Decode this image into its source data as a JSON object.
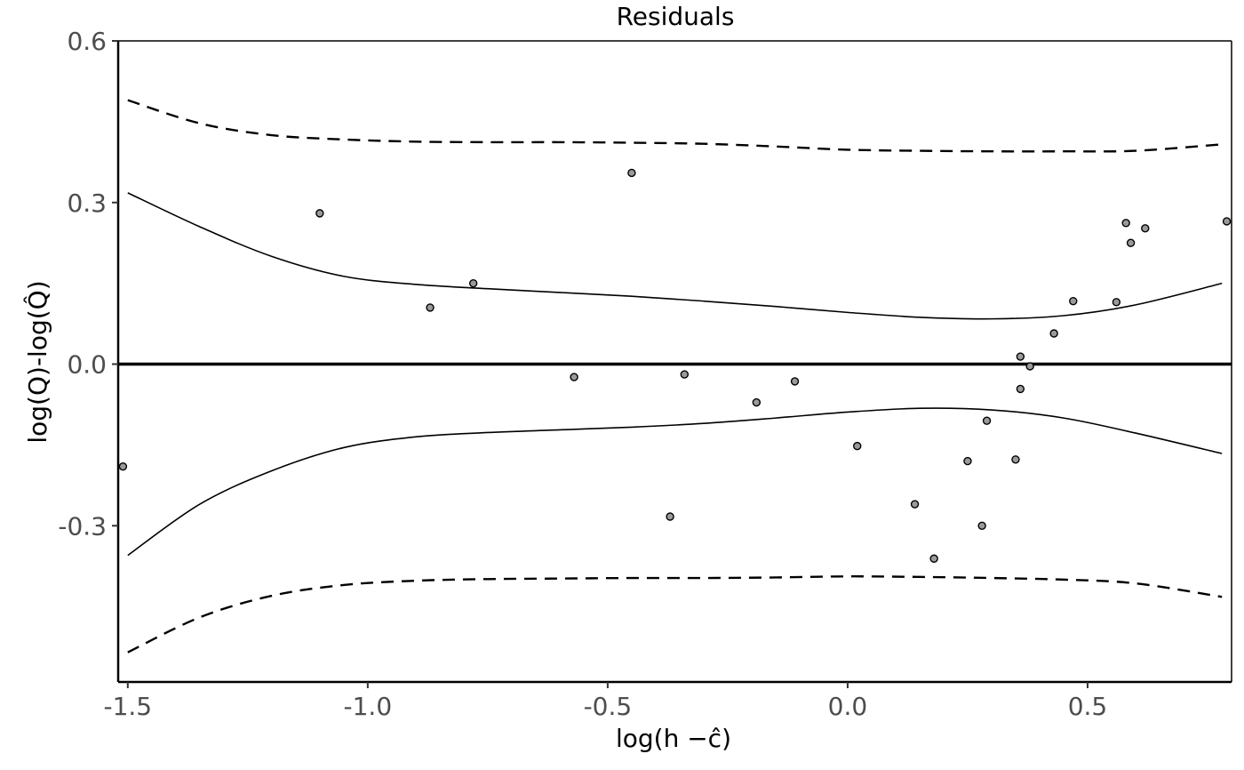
{
  "chart_data": {
    "type": "scatter",
    "title": "Residuals",
    "xlabel": "log(h −ĉ)",
    "ylabel": "log(Q)-log(Q̂)",
    "xlim": [
      -1.52,
      0.8
    ],
    "ylim": [
      -0.59,
      0.6
    ],
    "x_ticks": [
      -1.5,
      -1.0,
      -0.5,
      0.0,
      0.5
    ],
    "x_tick_labels": [
      "-1.5",
      "-1.0",
      "-0.5",
      "0.0",
      "0.5"
    ],
    "y_ticks": [
      -0.3,
      0.0,
      0.3,
      0.6
    ],
    "y_tick_labels": [
      "-0.3",
      "0.0",
      "0.3",
      "0.6"
    ],
    "grid": false,
    "zero_line": 0.0,
    "points": [
      {
        "x": -1.51,
        "y": -0.19
      },
      {
        "x": -1.1,
        "y": 0.28
      },
      {
        "x": -0.87,
        "y": 0.105
      },
      {
        "x": -0.78,
        "y": 0.15
      },
      {
        "x": -0.57,
        "y": -0.024
      },
      {
        "x": -0.45,
        "y": 0.355
      },
      {
        "x": -0.37,
        "y": -0.283
      },
      {
        "x": -0.34,
        "y": -0.019
      },
      {
        "x": -0.19,
        "y": -0.071
      },
      {
        "x": -0.11,
        "y": -0.032
      },
      {
        "x": 0.02,
        "y": -0.152
      },
      {
        "x": 0.14,
        "y": -0.26
      },
      {
        "x": 0.18,
        "y": -0.361
      },
      {
        "x": 0.25,
        "y": -0.18
      },
      {
        "x": 0.28,
        "y": -0.3
      },
      {
        "x": 0.29,
        "y": -0.105
      },
      {
        "x": 0.35,
        "y": -0.177
      },
      {
        "x": 0.36,
        "y": 0.014
      },
      {
        "x": 0.36,
        "y": -0.046
      },
      {
        "x": 0.38,
        "y": -0.004
      },
      {
        "x": 0.43,
        "y": 0.057
      },
      {
        "x": 0.47,
        "y": 0.117
      },
      {
        "x": 0.56,
        "y": 0.115
      },
      {
        "x": 0.58,
        "y": 0.262
      },
      {
        "x": 0.59,
        "y": 0.225
      },
      {
        "x": 0.62,
        "y": 0.252
      },
      {
        "x": 0.79,
        "y": 0.265
      }
    ],
    "bands": [
      {
        "style": "solid",
        "x": [
          -1.5,
          -1.35,
          -1.2,
          -1.05,
          -0.9,
          -0.75,
          -0.6,
          -0.45,
          -0.3,
          -0.15,
          0.0,
          0.15,
          0.3,
          0.45,
          0.6,
          0.78
        ],
        "y": [
          0.318,
          0.255,
          0.2,
          0.163,
          0.148,
          0.14,
          0.133,
          0.126,
          0.117,
          0.107,
          0.096,
          0.087,
          0.084,
          0.09,
          0.11,
          0.15
        ]
      },
      {
        "style": "solid",
        "x": [
          -1.5,
          -1.35,
          -1.2,
          -1.05,
          -0.9,
          -0.75,
          -0.6,
          -0.45,
          -0.3,
          -0.15,
          0.0,
          0.15,
          0.3,
          0.45,
          0.6,
          0.78
        ],
        "y": [
          -0.355,
          -0.26,
          -0.198,
          -0.155,
          -0.135,
          -0.127,
          -0.122,
          -0.117,
          -0.11,
          -0.1,
          -0.089,
          -0.082,
          -0.085,
          -0.1,
          -0.128,
          -0.166
        ]
      },
      {
        "style": "dashed",
        "x": [
          -1.5,
          -1.35,
          -1.2,
          -1.05,
          -0.9,
          -0.75,
          -0.6,
          -0.45,
          -0.3,
          -0.15,
          0.0,
          0.15,
          0.3,
          0.45,
          0.6,
          0.78
        ],
        "y": [
          0.49,
          0.447,
          0.425,
          0.417,
          0.413,
          0.412,
          0.412,
          0.411,
          0.409,
          0.404,
          0.398,
          0.396,
          0.395,
          0.395,
          0.396,
          0.408
        ]
      },
      {
        "style": "dashed",
        "x": [
          -1.5,
          -1.35,
          -1.2,
          -1.05,
          -0.9,
          -0.75,
          -0.6,
          -0.45,
          -0.3,
          -0.15,
          0.0,
          0.15,
          0.3,
          0.45,
          0.6,
          0.78
        ],
        "y": [
          -0.535,
          -0.47,
          -0.43,
          -0.41,
          -0.402,
          -0.399,
          -0.398,
          -0.397,
          -0.397,
          -0.396,
          -0.394,
          -0.395,
          -0.397,
          -0.4,
          -0.407,
          -0.432
        ]
      }
    ]
  }
}
